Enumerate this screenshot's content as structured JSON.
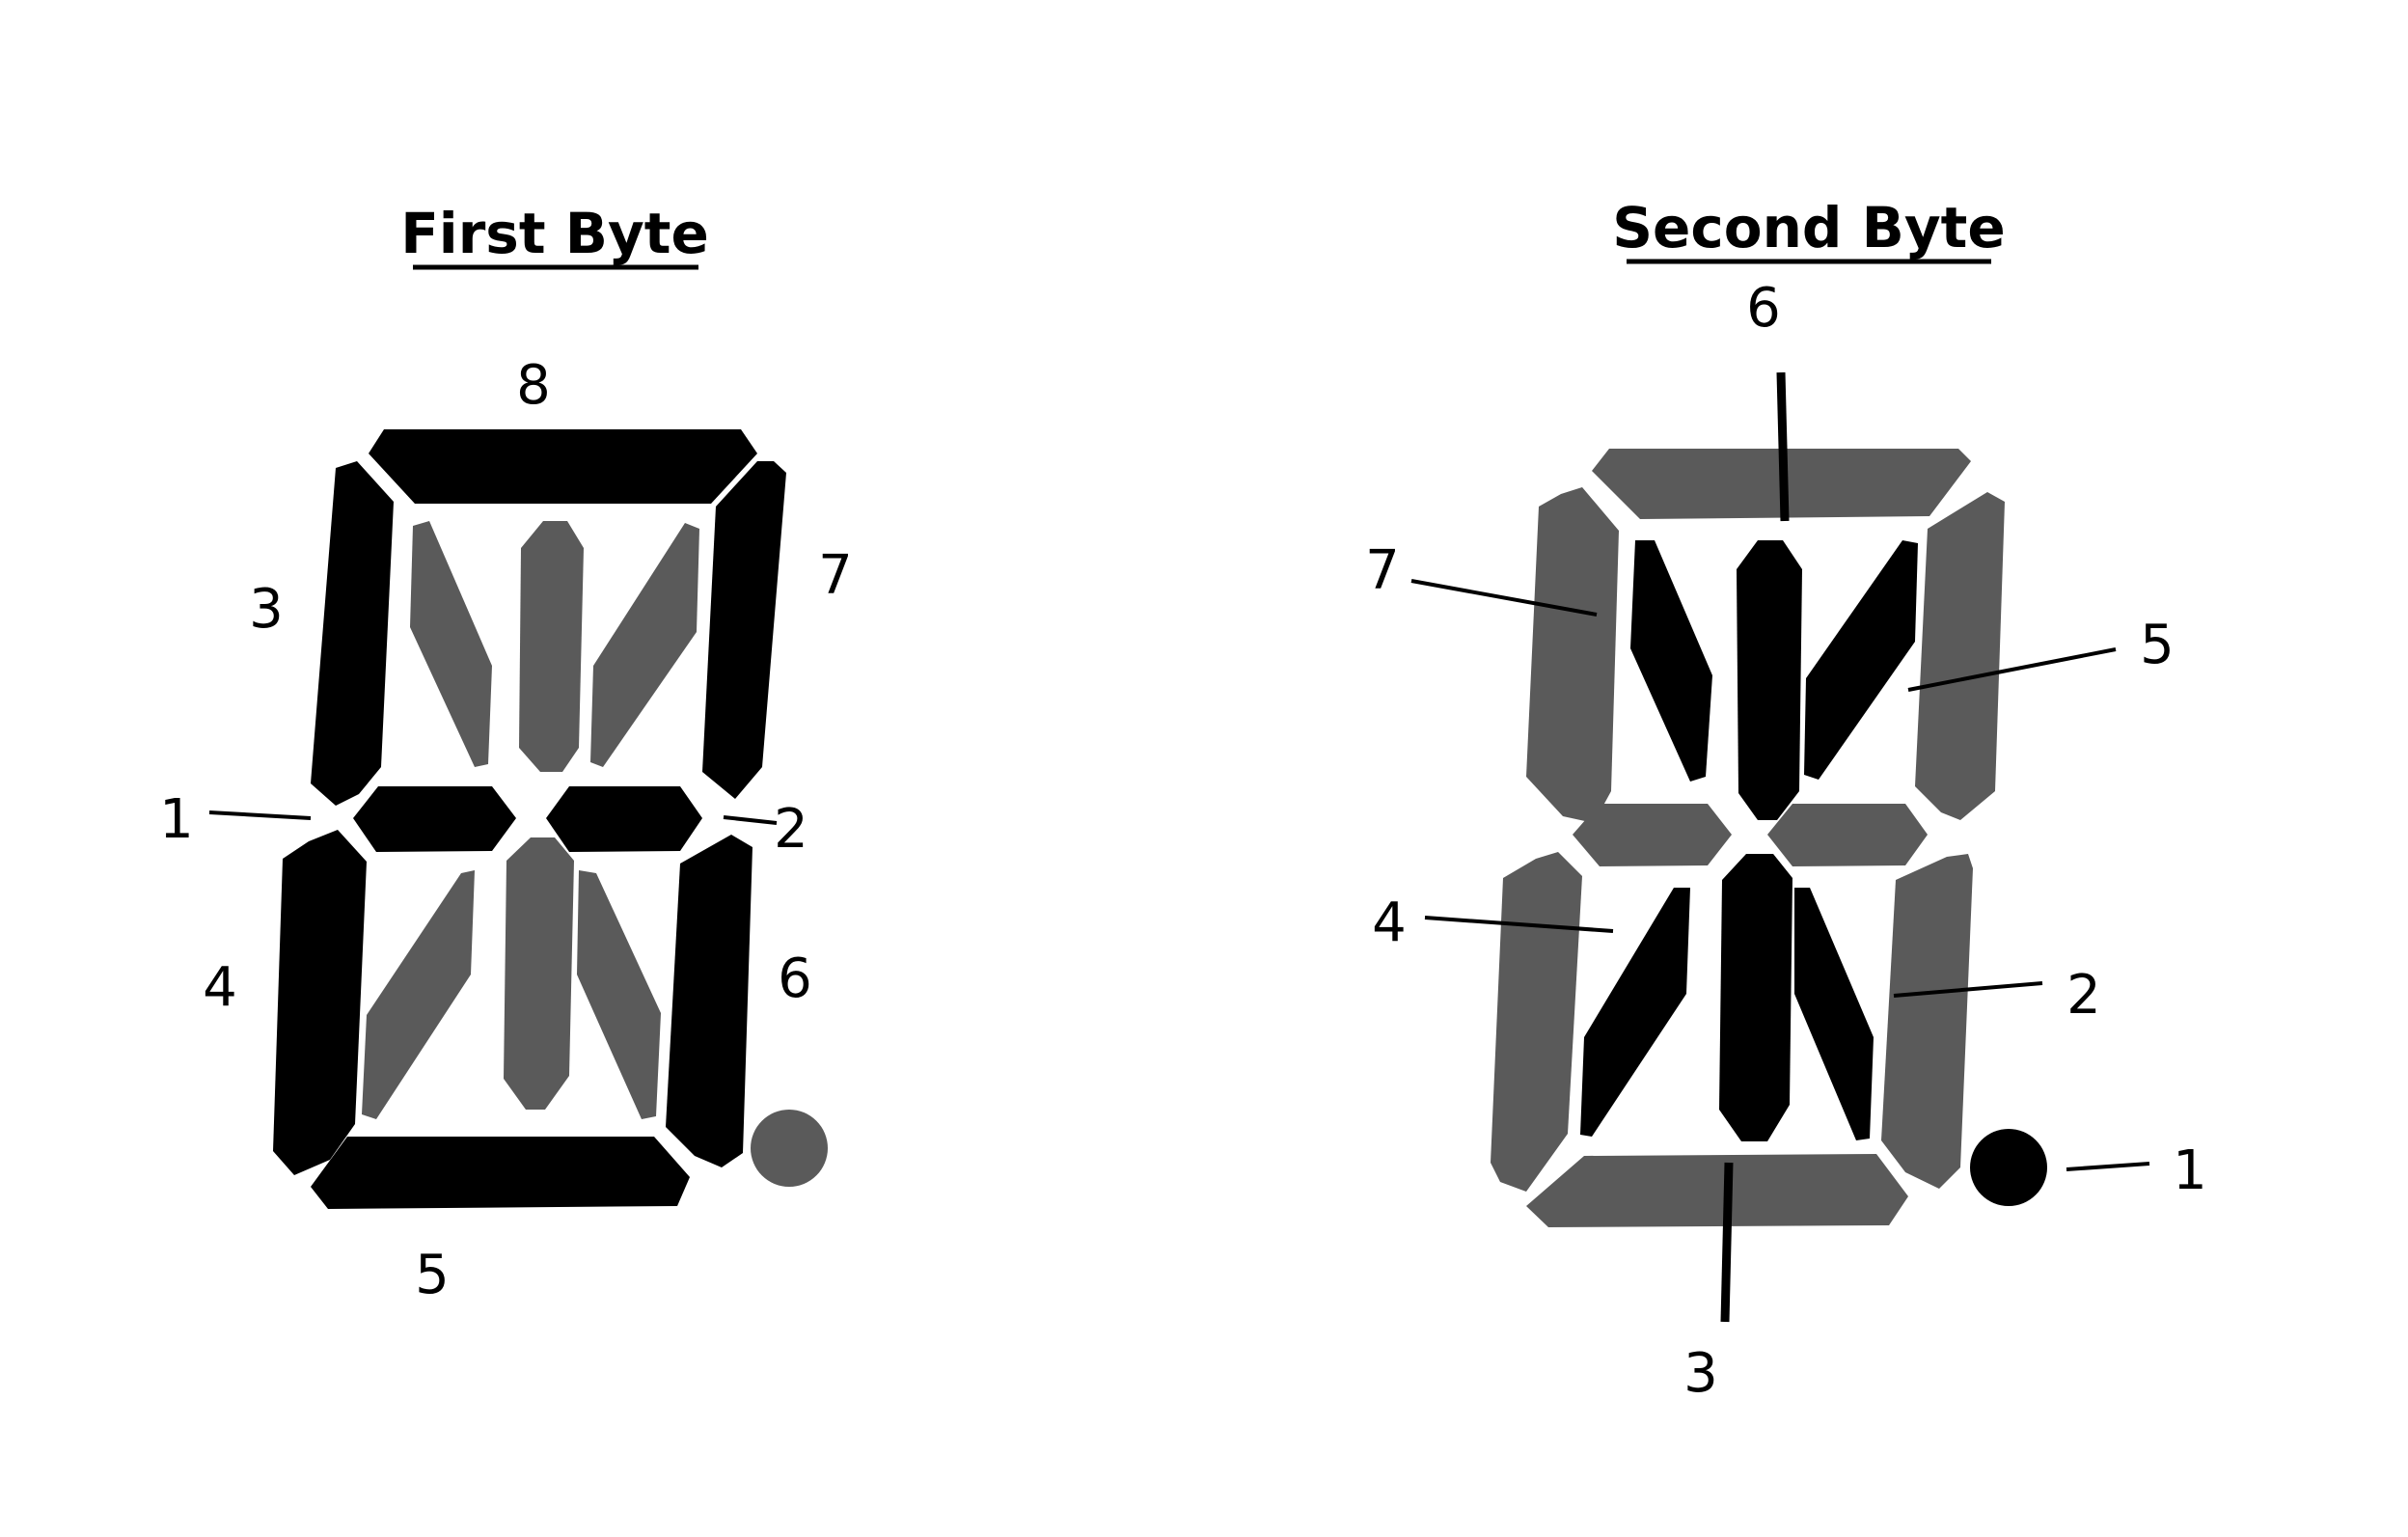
{
  "colors": {
    "on": "#000000",
    "off": "#5a5a5a",
    "background": "#ffffff"
  },
  "first_byte": {
    "title": "First Byte",
    "labels": {
      "top": "8",
      "upper_left": "3",
      "upper_right": "7",
      "middle_left": "1",
      "middle_right": "2",
      "lower_left": "4",
      "lower_right": "6",
      "bottom": "5"
    }
  },
  "second_byte": {
    "title": "Second Byte",
    "labels": {
      "top": "6",
      "upper_left": "7",
      "upper_right": "5",
      "lower_left": "4",
      "lower_right": "2",
      "dot": "1",
      "bottom": "3"
    }
  }
}
